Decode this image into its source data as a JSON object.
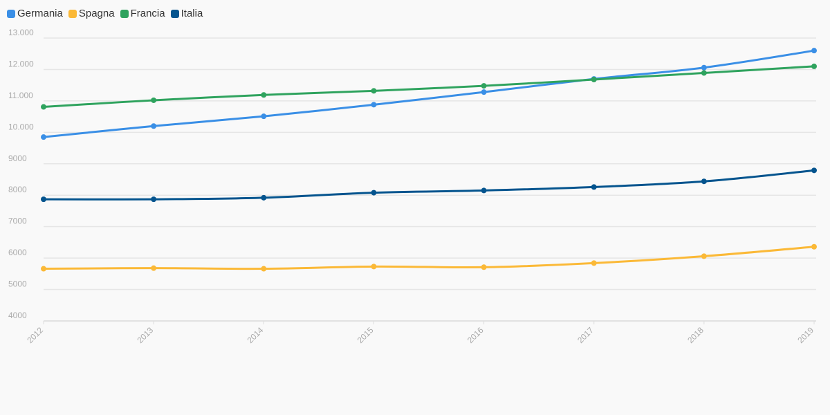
{
  "chart_data": {
    "type": "line",
    "x": [
      "2012",
      "2013",
      "2014",
      "2015",
      "2016",
      "2017",
      "2018",
      "2019"
    ],
    "ylim": [
      4000,
      13000
    ],
    "yticks": [
      4000,
      5000,
      6000,
      7000,
      8000,
      9000,
      10000,
      11000,
      12000,
      13000
    ],
    "ytick_labels": [
      "4000",
      "5000",
      "6000",
      "7000",
      "8000",
      "9000",
      "10.000",
      "11.000",
      "12.000",
      "13.000"
    ],
    "grid": true,
    "legend_position": "top-left",
    "series": [
      {
        "name": "Germania",
        "color": "#3a8fe6",
        "values": [
          9850,
          10200,
          10510,
          10880,
          11280,
          11700,
          12060,
          12600
        ]
      },
      {
        "name": "Spagna",
        "color": "#fbb937",
        "values": [
          5660,
          5680,
          5660,
          5730,
          5710,
          5840,
          6060,
          6360
        ]
      },
      {
        "name": "Francia",
        "color": "#2fa35e",
        "values": [
          10810,
          11020,
          11190,
          11320,
          11480,
          11680,
          11890,
          12100
        ]
      },
      {
        "name": "Italia",
        "color": "#04548e",
        "values": [
          7870,
          7870,
          7920,
          8080,
          8150,
          8260,
          8440,
          8790
        ]
      }
    ]
  }
}
